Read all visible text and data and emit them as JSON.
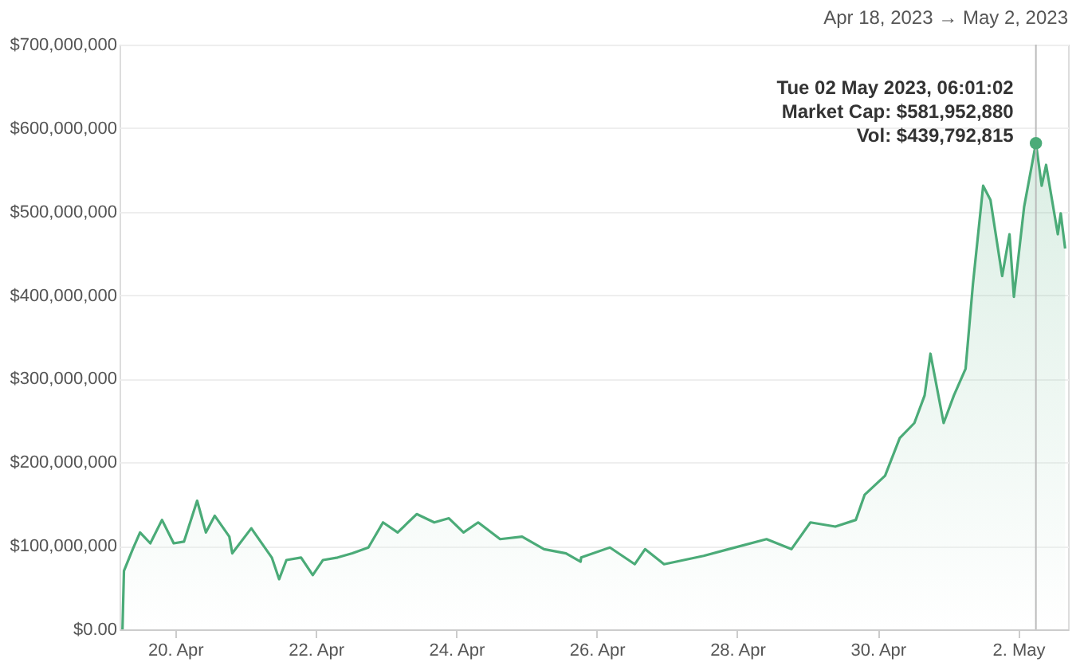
{
  "chart_data": {
    "type": "area",
    "subtitle": "Apr 18, 2023 → May 2, 2023",
    "x": [
      "2023-04-19T06:00",
      "2023-04-19T06:30",
      "2023-04-19T09:30",
      "2023-04-19T12:00",
      "2023-04-19T15:30",
      "2023-04-19T19:30",
      "2023-04-19T23:30",
      "2023-04-20T03:00",
      "2023-04-20T07:30",
      "2023-04-20T10:30",
      "2023-04-20T13:30",
      "2023-04-20T18:30",
      "2023-04-20T19:30",
      "2023-04-21T02:00",
      "2023-04-21T09:00",
      "2023-04-21T11:30",
      "2023-04-21T14:00",
      "2023-04-21T19:00",
      "2023-04-21T23:00",
      "2023-04-22T02:30",
      "2023-04-22T07:30",
      "2023-04-22T12:30",
      "2023-04-22T18:00",
      "2023-04-22T23:00",
      "2023-04-23T04:00",
      "2023-04-23T10:30",
      "2023-04-23T16:30",
      "2023-04-23T21:30",
      "2023-04-24T02:30",
      "2023-04-24T07:30",
      "2023-04-24T15:00",
      "2023-04-24T22:30",
      "2023-04-25T06:00",
      "2023-04-25T13:30",
      "2023-04-25T18:30",
      "2023-04-25T18:40",
      "2023-04-26T04:30",
      "2023-04-26T13:00",
      "2023-04-26T16:30",
      "2023-04-26T23:00",
      "2023-04-27T12:30",
      "2023-04-27T21:00",
      "2023-04-28T10:00",
      "2023-04-28T18:30",
      "2023-04-29T01:00",
      "2023-04-29T09:30",
      "2023-04-29T16:30",
      "2023-04-29T19:30",
      "2023-04-30T02:30",
      "2023-04-30T07:30",
      "2023-04-30T12:30",
      "2023-04-30T16:00",
      "2023-04-30T18:00",
      "2023-04-30T22:30",
      "2023-05-01T02:00",
      "2023-05-01T06:00",
      "2023-05-01T08:30",
      "2023-05-01T12:00",
      "2023-05-01T14:30",
      "2023-05-01T18:30",
      "2023-05-01T21:00",
      "2023-05-01T22:30",
      "2023-05-02T02:00",
      "2023-05-02T06:01",
      "2023-05-02T08:00",
      "2023-05-02T09:30",
      "2023-05-02T13:30",
      "2023-05-02T14:30",
      "2023-05-02T16:00"
    ],
    "series": [
      {
        "color": "#4bab78",
        "values": [
          0,
          70000000,
          96000000,
          116000000,
          103000000,
          131000000,
          103000000,
          105000000,
          154000000,
          116000000,
          136000000,
          111000000,
          91000000,
          121000000,
          86000000,
          60000000,
          83000000,
          86000000,
          65000000,
          83000000,
          86000000,
          91000000,
          98000000,
          128000000,
          116000000,
          138000000,
          128000000,
          133000000,
          116000000,
          128000000,
          108000000,
          111000000,
          96000000,
          91000000,
          81000000,
          86000000,
          98000000,
          78000000,
          96000000,
          78000000,
          88000000,
          96000000,
          108000000,
          96000000,
          128000000,
          123000000,
          131000000,
          161000000,
          184000000,
          229000000,
          247000000,
          280000000,
          330000000,
          247000000,
          280000000,
          312000000,
          413000000,
          531000000,
          514000000,
          423000000,
          473000000,
          398000000,
          506000000,
          581952880,
          531000000,
          556000000,
          473000000,
          498000000,
          456000000
        ]
      }
    ],
    "xlim": [
      "2023-04-19T05:00",
      "2023-05-02T17:00"
    ],
    "xticks": [
      {
        "value": "2023-04-20",
        "label": "20. Apr"
      },
      {
        "value": "2023-04-22",
        "label": "22. Apr"
      },
      {
        "value": "2023-04-24",
        "label": "24. Apr"
      },
      {
        "value": "2023-04-26",
        "label": "26. Apr"
      },
      {
        "value": "2023-04-28",
        "label": "28. Apr"
      },
      {
        "value": "2023-04-30",
        "label": "30. Apr"
      },
      {
        "value": "2023-05-02",
        "label": "2. May"
      }
    ],
    "ylim": [
      0,
      700000000
    ],
    "yticks": [
      {
        "value": 0,
        "label": "$0.00"
      },
      {
        "value": 100000000,
        "label": "$100,000,000"
      },
      {
        "value": 200000000,
        "label": "$200,000,000"
      },
      {
        "value": 300000000,
        "label": "$300,000,000"
      },
      {
        "value": 400000000,
        "label": "$400,000,000"
      },
      {
        "value": 500000000,
        "label": "$500,000,000"
      },
      {
        "value": 600000000,
        "label": "$600,000,000"
      },
      {
        "value": 700000000,
        "label": "$700,000,000"
      }
    ],
    "grid": "y",
    "ref_lines": [
      {
        "axis": "x",
        "value": "2023-05-02T06:01",
        "color": "#bbbbbb"
      }
    ],
    "annotations": [
      {
        "text": "Tue 02 May 2023, 06:01:02\n\nMarket Cap: $581,952,880\nVol: $439,792,815",
        "x": "2023-05-02T06:01",
        "y": 581952880
      }
    ]
  }
}
